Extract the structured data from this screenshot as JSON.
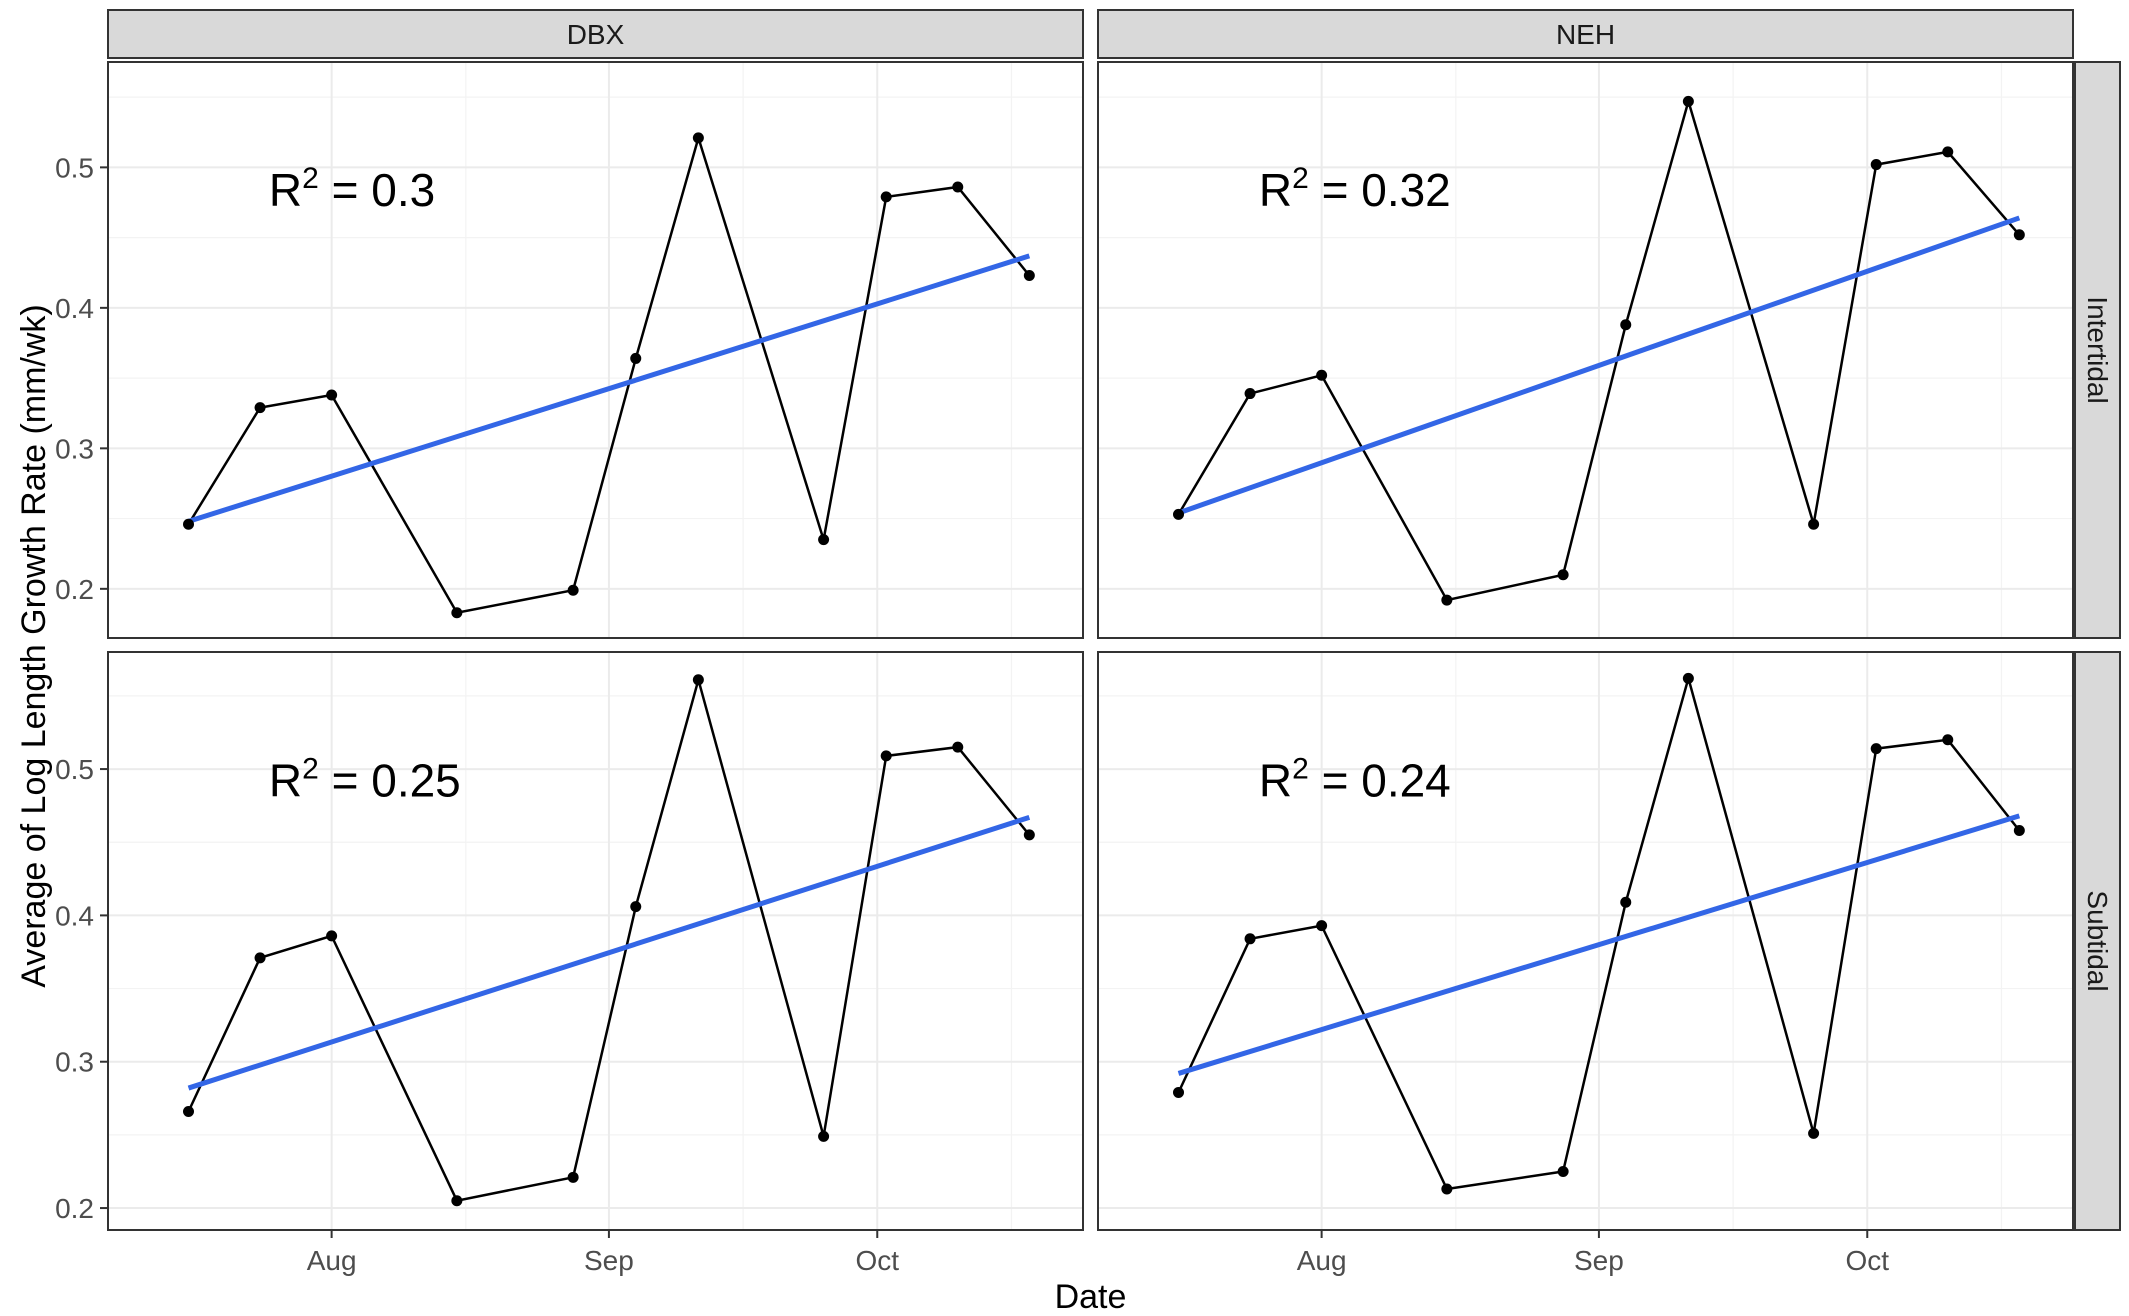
{
  "chart_data": {
    "type": "line",
    "xlabel": "Date",
    "ylabel": "Average of Log Length Growth Rate (mm/wk)",
    "columns": [
      "DBX",
      "NEH"
    ],
    "rows": [
      "Intertidal",
      "Subtidal"
    ],
    "x_ticks": [
      {
        "label": "Aug",
        "date": "2023-08-01"
      },
      {
        "label": "Sep",
        "date": "2023-09-01"
      },
      {
        "label": "Oct",
        "date": "2023-10-01"
      }
    ],
    "x_minor_ticks": [
      "2023-08-16",
      "2023-09-16",
      "2023-10-16"
    ],
    "xlim": [
      "2023-07-07",
      "2023-10-24"
    ],
    "y_ticks": [
      0.2,
      0.3,
      0.4,
      0.5
    ],
    "y_minor_ticks": [
      0.25,
      0.35,
      0.45,
      0.55
    ],
    "grid": true,
    "point_color": "#000000",
    "trend_color": "#3366e6",
    "panels": [
      {
        "row": "Intertidal",
        "col": "DBX",
        "r2_value": "0.3",
        "ylim": [
          0.165,
          0.575
        ],
        "x": [
          "2023-07-16",
          "2023-07-24",
          "2023-08-01",
          "2023-08-15",
          "2023-08-28",
          "2023-09-04",
          "2023-09-11",
          "2023-09-25",
          "2023-10-02",
          "2023-10-10",
          "2023-10-18"
        ],
        "y": [
          0.246,
          0.329,
          0.338,
          0.183,
          0.199,
          0.364,
          0.521,
          0.235,
          0.479,
          0.486,
          0.423
        ],
        "trend": [
          0.248,
          0.437
        ]
      },
      {
        "row": "Intertidal",
        "col": "NEH",
        "r2_value": "0.32",
        "ylim": [
          0.165,
          0.575
        ],
        "x": [
          "2023-07-16",
          "2023-07-24",
          "2023-08-01",
          "2023-08-15",
          "2023-08-28",
          "2023-09-04",
          "2023-09-11",
          "2023-09-25",
          "2023-10-02",
          "2023-10-10",
          "2023-10-18"
        ],
        "y": [
          0.253,
          0.339,
          0.352,
          0.192,
          0.21,
          0.388,
          0.547,
          0.246,
          0.502,
          0.511,
          0.452
        ],
        "trend": [
          0.254,
          0.464
        ]
      },
      {
        "row": "Subtidal",
        "col": "DBX",
        "r2_value": "0.25",
        "ylim": [
          0.185,
          0.58
        ],
        "x": [
          "2023-07-16",
          "2023-07-24",
          "2023-08-01",
          "2023-08-15",
          "2023-08-28",
          "2023-09-04",
          "2023-09-11",
          "2023-09-25",
          "2023-10-02",
          "2023-10-10",
          "2023-10-18"
        ],
        "y": [
          0.266,
          0.371,
          0.386,
          0.205,
          0.221,
          0.406,
          0.561,
          0.249,
          0.509,
          0.515,
          0.455
        ],
        "trend": [
          0.282,
          0.467
        ]
      },
      {
        "row": "Subtidal",
        "col": "NEH",
        "r2_value": "0.24",
        "ylim": [
          0.185,
          0.58
        ],
        "x": [
          "2023-07-16",
          "2023-07-24",
          "2023-08-01",
          "2023-08-15",
          "2023-08-28",
          "2023-09-04",
          "2023-09-11",
          "2023-09-25",
          "2023-10-02",
          "2023-10-10",
          "2023-10-18"
        ],
        "y": [
          0.279,
          0.384,
          0.393,
          0.213,
          0.225,
          0.409,
          0.562,
          0.251,
          0.514,
          0.52,
          0.458
        ],
        "trend": [
          0.292,
          0.468
        ]
      }
    ]
  }
}
